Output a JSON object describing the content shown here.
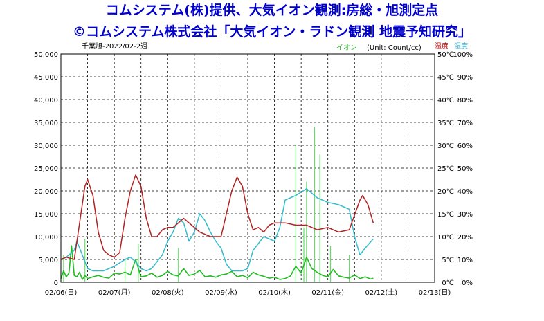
{
  "header": {
    "line1": "コムシステム(株)提供、大気イオン観測:房総・旭測定点",
    "line2": "©コムシステム株式会社「大気イオン・ラドン観測 地震予知研究」"
  },
  "chart_data": {
    "type": "line",
    "title": "千葉旭-2022/02-2週",
    "unit_label": "(Unit: Count/cc)",
    "legend": {
      "ion": "イオン",
      "temperature": "温度",
      "humidity": "湿度"
    },
    "x_categories": [
      "02/06(日)",
      "02/07(月)",
      "02/08(火)",
      "02/09(水)",
      "02/10(木)",
      "02/11(金)",
      "02/12(土)",
      "02/13(日)"
    ],
    "xlim": [
      0,
      7
    ],
    "y_left": {
      "label": "イオン",
      "range": [
        0,
        50000
      ],
      "ticks": [
        "0",
        "5,000",
        "10,000",
        "15,000",
        "20,000",
        "25,000",
        "30,000",
        "35,000",
        "40,000",
        "45,000",
        "50,000"
      ]
    },
    "y_temp": {
      "label": "温度",
      "range": [
        0,
        50
      ],
      "ticks": [
        "0℃",
        "5℃",
        "10℃",
        "15℃",
        "20℃",
        "25℃",
        "30℃",
        "35℃",
        "40℃",
        "45℃",
        "50℃"
      ]
    },
    "y_hum": {
      "label": "湿度",
      "range": [
        0,
        100
      ],
      "ticks": [
        "0%",
        "10%",
        "20%",
        "30%",
        "40%",
        "50%",
        "60%",
        "70%",
        "80%",
        "90%",
        "100%"
      ]
    },
    "grid": true,
    "colors": {
      "ion": "#22bb22",
      "temperature": "#b22222",
      "humidity": "#33bbcc"
    },
    "series": [
      {
        "name": "温度",
        "axis": "temperature",
        "color": "#b22222",
        "x": [
          0,
          0.1,
          0.25,
          0.35,
          0.45,
          0.5,
          0.6,
          0.7,
          0.8,
          0.9,
          1.0,
          1.1,
          1.2,
          1.3,
          1.4,
          1.5,
          1.6,
          1.7,
          1.8,
          1.9,
          2.0,
          2.1,
          2.2,
          2.3,
          2.4,
          2.5,
          2.6,
          2.7,
          2.8,
          2.9,
          3.0,
          3.2,
          3.3,
          3.4,
          3.5,
          3.6,
          3.7,
          3.8,
          3.9,
          4.0,
          4.2,
          4.4,
          4.6,
          4.8,
          5.0,
          5.2,
          5.4,
          5.6,
          5.65,
          5.75,
          5.85
        ],
        "y": [
          5,
          5.5,
          5,
          13,
          21,
          22.5,
          19,
          11,
          7,
          6,
          5.5,
          6.5,
          14,
          20,
          23.5,
          21,
          14,
          10,
          10,
          11.5,
          12,
          12,
          13,
          14,
          13,
          12,
          11,
          10.5,
          10,
          10,
          10,
          20,
          23,
          21,
          15,
          11.5,
          12,
          11,
          12.5,
          13,
          13,
          12.5,
          12.5,
          11.5,
          12,
          11,
          11.5,
          18,
          19,
          17,
          13
        ]
      },
      {
        "name": "湿度",
        "axis": "humidity",
        "color": "#33bbcc",
        "x": [
          0,
          0.1,
          0.25,
          0.3,
          0.4,
          0.5,
          0.6,
          0.8,
          1.0,
          1.2,
          1.3,
          1.4,
          1.5,
          1.6,
          1.7,
          1.9,
          2.0,
          2.1,
          2.2,
          2.3,
          2.4,
          2.5,
          2.6,
          2.7,
          2.8,
          2.9,
          3.0,
          3.1,
          3.2,
          3.3,
          3.4,
          3.5,
          3.6,
          3.8,
          4.0,
          4.1,
          4.2,
          4.4,
          4.6,
          4.8,
          5.0,
          5.2,
          5.4,
          5.5,
          5.6,
          5.7,
          5.85
        ],
        "y": [
          10,
          11,
          14,
          18,
          12,
          6,
          5,
          5,
          7,
          10,
          11,
          9,
          6,
          5,
          6,
          12,
          18,
          22,
          28,
          26,
          18,
          22,
          30,
          27,
          22,
          18,
          15,
          8,
          5,
          5,
          5,
          6,
          14,
          20,
          18,
          24,
          36,
          38,
          41,
          37,
          35,
          34,
          32,
          20,
          12,
          15,
          19
        ]
      },
      {
        "name": "イオン",
        "axis": "ion",
        "color": "#22bb22",
        "x": [
          0,
          0.05,
          0.1,
          0.15,
          0.2,
          0.25,
          0.3,
          0.35,
          0.4,
          0.45,
          0.5,
          0.6,
          0.7,
          0.8,
          0.9,
          1.0,
          1.1,
          1.2,
          1.3,
          1.4,
          1.5,
          1.6,
          1.7,
          1.8,
          1.9,
          2.0,
          2.1,
          2.2,
          2.3,
          2.4,
          2.5,
          2.6,
          2.7,
          2.8,
          2.9,
          3.0,
          3.1,
          3.2,
          3.3,
          3.4,
          3.5,
          3.6,
          3.7,
          3.8,
          3.9,
          4.0,
          4.1,
          4.2,
          4.3,
          4.4,
          4.5,
          4.6,
          4.7,
          4.8,
          4.9,
          5.0,
          5.1,
          5.2,
          5.3,
          5.4,
          5.5,
          5.6,
          5.7,
          5.8,
          5.85
        ],
        "y": [
          800,
          2500,
          1200,
          2000,
          8000,
          1500,
          1200,
          2200,
          600,
          1500,
          800,
          1200,
          1500,
          1100,
          900,
          2000,
          1800,
          2200,
          1600,
          5000,
          1200,
          1400,
          2000,
          1100,
          1500,
          2400,
          1600,
          1400,
          3000,
          1500,
          1800,
          2600,
          1200,
          1400,
          1100,
          1600,
          1800,
          2400,
          1200,
          1500,
          1000,
          2200,
          1600,
          1300,
          900,
          1100,
          600,
          800,
          1400,
          3500,
          2000,
          5500,
          3000,
          2200,
          1500,
          1200,
          2800,
          1400,
          1100,
          900,
          1600,
          800,
          1200,
          700,
          900
        ]
      }
    ],
    "spikes": {
      "name": "イオン",
      "x": [
        0.05,
        0.45,
        1.2,
        1.45,
        2.2,
        4.4,
        4.55,
        4.6,
        4.75,
        4.85,
        5.05,
        5.4
      ],
      "y": [
        6000,
        9500,
        5000,
        8500,
        7500,
        30000,
        12000,
        22000,
        34000,
        28000,
        8000,
        6000
      ]
    }
  }
}
